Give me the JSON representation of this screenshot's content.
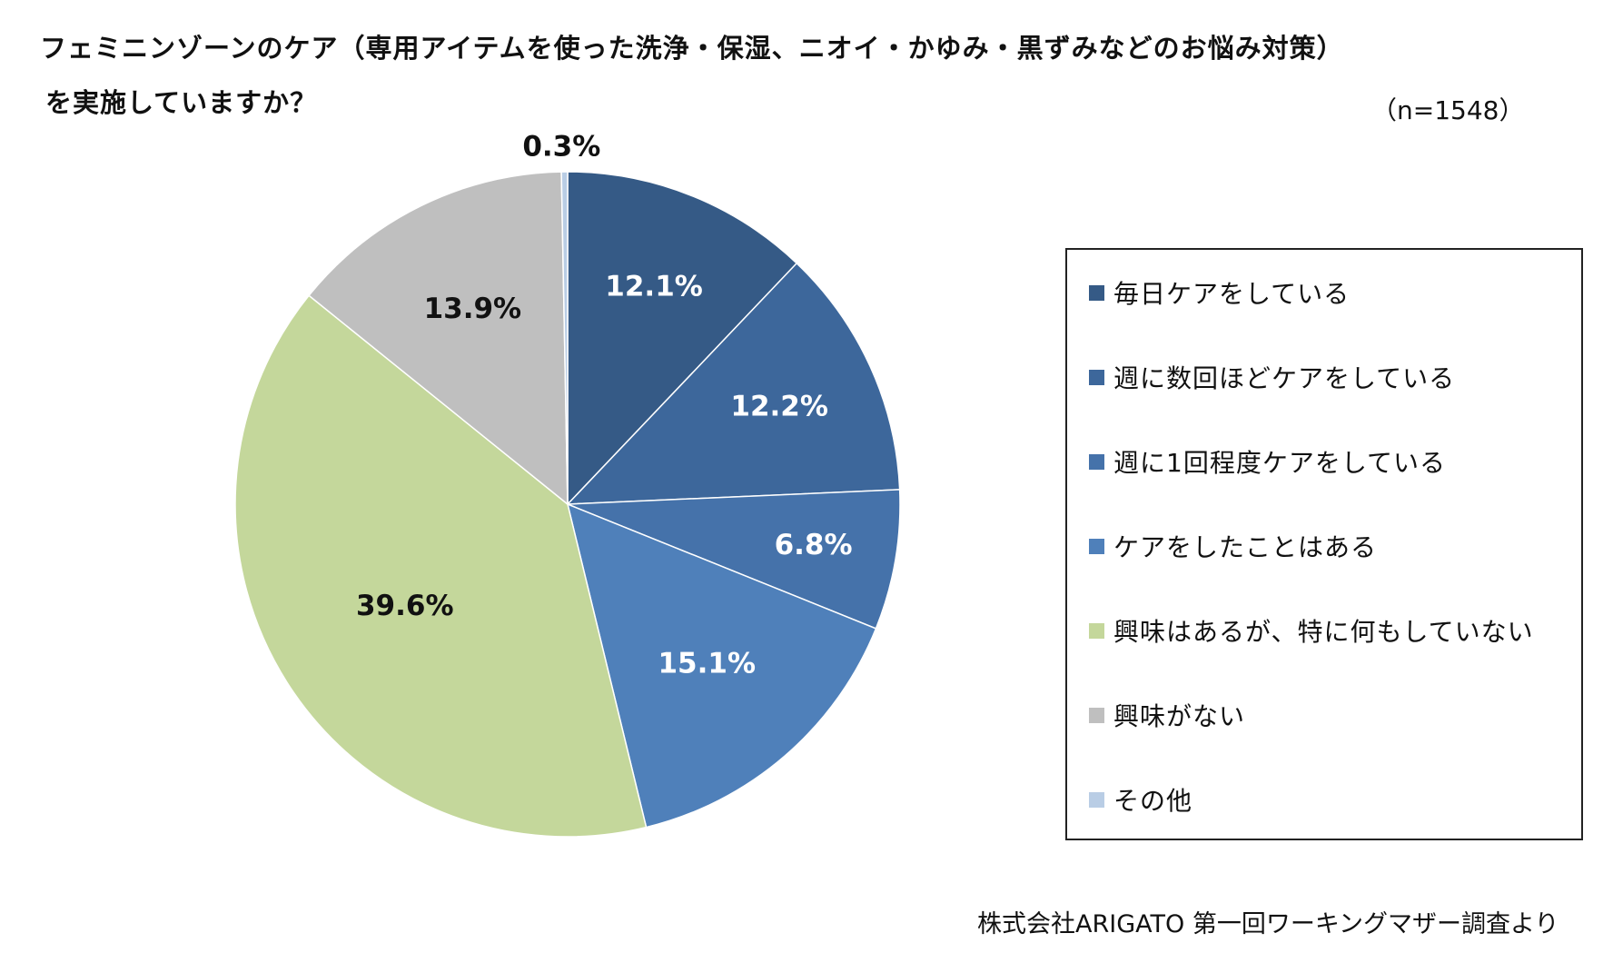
{
  "title": {
    "line1": "フェミニンゾーンのケア（専用アイテムを使った洗浄・保湿、ニオイ・かゆみ・黒ずみなどのお悩み対策）",
    "line2": "を実施していますか？"
  },
  "sample_size": "（n=1548）",
  "source": "株式会社ARIGATO 第一回ワーキングマザー調査より",
  "chart_data": {
    "type": "pie",
    "title": "フェミニンゾーンのケア（専用アイテムを使った洗浄・保湿、ニオイ・かゆみ・黒ずみなどのお悩み対策）を実施していますか？",
    "start": "12 o'clock",
    "direction": "clockwise",
    "legend_position": "right",
    "slices": [
      {
        "label": "毎日ケアをしている",
        "value": 12.1,
        "display": "12.1%",
        "color": "#355a86",
        "label_color": "#ffffff"
      },
      {
        "label": "週に数回ほどケアをしている",
        "value": 12.2,
        "display": "12.2%",
        "color": "#3d679b",
        "label_color": "#ffffff"
      },
      {
        "label": "週に1回程度ケアをしている",
        "value": 6.8,
        "display": "6.8%",
        "color": "#4572aa",
        "label_color": "#ffffff"
      },
      {
        "label": "ケアをしたことはある",
        "value": 15.1,
        "display": "15.1%",
        "color": "#4f80ba",
        "label_color": "#ffffff"
      },
      {
        "label": "興味はあるが、特に何もしていない",
        "value": 39.6,
        "display": "39.6%",
        "color": "#c4d79b",
        "label_color": "#111111"
      },
      {
        "label": "興味がない",
        "value": 13.9,
        "display": "13.9%",
        "color": "#bfbfbf",
        "label_color": "#111111"
      },
      {
        "label": "その他",
        "value": 0.3,
        "display": "0.3%",
        "color": "#b9cde5",
        "label_color": "#111111"
      }
    ]
  }
}
